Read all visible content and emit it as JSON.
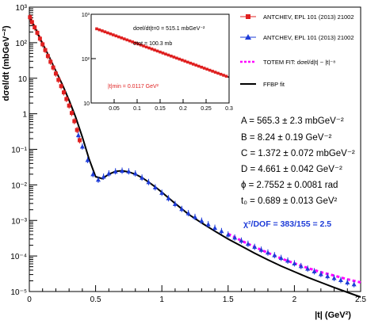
{
  "chart_data": {
    "type": "scatter",
    "title": "",
    "xlabel": "|t| (GeV²)",
    "ylabel": "dσel/dt (mbGeV⁻²)",
    "xlim": [
      0,
      2.5
    ],
    "ylim": [
      1e-05,
      1000
    ],
    "log_y": true,
    "x_ticks": [
      "0",
      "0.5",
      "1",
      "1.5",
      "2",
      "2.5"
    ],
    "y_ticks": [
      "10⁻⁵",
      "10⁻⁴",
      "10⁻³",
      "10⁻²",
      "10⁻¹",
      "1",
      "10",
      "10²",
      "10³"
    ],
    "series": [
      {
        "name": "ANTCHEV, EPL 101 (2013) 21002",
        "color": "#e02020",
        "marker": "square",
        "x": [
          0.005,
          0.02,
          0.04,
          0.06,
          0.08,
          0.1,
          0.12,
          0.14,
          0.16,
          0.18,
          0.2,
          0.22,
          0.24,
          0.26,
          0.28,
          0.3,
          0.32,
          0.34,
          0.36,
          0.38
        ],
        "y": [
          520,
          380,
          270,
          190,
          130,
          90,
          62,
          42,
          29,
          20,
          13.5,
          9.0,
          6.0,
          4.0,
          2.6,
          1.7,
          1.05,
          0.62,
          0.35,
          0.18
        ]
      },
      {
        "name": "ANTCHEV, EPL 101 (2013) 21002",
        "color": "#1e3cd8",
        "marker": "triangle",
        "x": [
          0.37,
          0.4,
          0.44,
          0.48,
          0.52,
          0.56,
          0.6,
          0.65,
          0.7,
          0.75,
          0.8,
          0.85,
          0.9,
          0.95,
          1.0,
          1.05,
          1.1,
          1.15,
          1.2,
          1.25,
          1.3,
          1.35,
          1.4,
          1.45,
          1.5,
          1.55,
          1.6,
          1.65,
          1.7,
          1.75,
          1.8,
          1.85,
          1.9,
          1.95,
          2.0,
          2.05,
          2.1,
          2.15,
          2.2,
          2.25,
          2.3,
          2.35,
          2.4,
          2.45
        ],
        "y": [
          0.25,
          0.12,
          0.05,
          0.02,
          0.014,
          0.017,
          0.021,
          0.024,
          0.025,
          0.024,
          0.021,
          0.016,
          0.012,
          0.0085,
          0.006,
          0.0042,
          0.0029,
          0.0021,
          0.0016,
          0.00125,
          0.00098,
          0.00078,
          0.00062,
          0.0005,
          0.0004,
          0.00033,
          0.00027,
          0.00022,
          0.00018,
          0.00015,
          0.000125,
          0.000105,
          8.8e-05,
          7.4e-05,
          6.2e-05,
          5.2e-05,
          4.4e-05,
          3.7e-05,
          3.1e-05,
          2.7e-05,
          2.4e-05,
          2.1e-05,
          1.8e-05,
          1.6e-05
        ]
      },
      {
        "name": "TOTEM FIT: dσel/d|t| ~ |t|⁻⁸",
        "color": "#ff00ff",
        "style": "dashed",
        "x": [
          1.5,
          1.6,
          1.7,
          1.8,
          1.9,
          2.0,
          2.1,
          2.2,
          2.3,
          2.4,
          2.5
        ],
        "y": [
          0.00042,
          0.00027,
          0.00018,
          0.000122,
          8.5e-05,
          6.2e-05,
          4.6e-05,
          3.5e-05,
          2.8e-05,
          2.2e-05,
          1.8e-05
        ]
      },
      {
        "name": "FFBP fit",
        "color": "#000000",
        "style": "solid",
        "x": [
          0,
          0.05,
          0.1,
          0.15,
          0.2,
          0.25,
          0.3,
          0.35,
          0.4,
          0.45,
          0.5,
          0.55,
          0.6,
          0.65,
          0.7,
          0.75,
          0.8,
          0.85,
          0.9,
          0.95,
          1.0,
          1.1,
          1.2,
          1.3,
          1.4,
          1.5,
          1.6,
          1.7,
          1.8,
          1.9,
          2.0,
          2.1,
          2.2,
          2.3,
          2.4,
          2.5
        ],
        "y": [
          560,
          230,
          95,
          40,
          16,
          6.5,
          2.4,
          0.8,
          0.22,
          0.055,
          0.017,
          0.015,
          0.02,
          0.024,
          0.025,
          0.023,
          0.02,
          0.016,
          0.012,
          0.0088,
          0.0062,
          0.003,
          0.0015,
          0.00085,
          0.0005,
          0.0003,
          0.00019,
          0.00012,
          7.8e-05,
          5.2e-05,
          3.6e-05,
          2.5e-05,
          1.8e-05,
          1.3e-05,
          9.5e-06,
          7e-06
        ]
      }
    ],
    "parameters": [
      "A = 565.3 ± 2.3  mbGeV⁻²",
      "B = 8.24 ± 0.19 GeV⁻²",
      "C = 1.372 ± 0.072 mbGeV⁻²",
      "D = 4.661 ± 0.042 GeV⁻²",
      "ϕ = 2.7552 ± 0.0081 rad",
      "t₀ = 0.689 ± 0.013 GeV²"
    ],
    "chi2": "χ²/DOF = 383/155 = 2.5",
    "inset": {
      "xlim": [
        0,
        0.3
      ],
      "ylim": [
        10,
        1000
      ],
      "x_ticks": [
        "0.05",
        "0.1",
        "0.15",
        "0.2",
        "0.25",
        "0.3"
      ],
      "y_ticks": [
        "10",
        "10²",
        "10³"
      ],
      "label1": "dσel/dt|t=0 = 515.1 mbGeV⁻²",
      "label2": "σtot = 100.3 mb",
      "label3": "|t|min = 0.0117 GeV²",
      "fit_x": [
        0.012,
        0.3
      ],
      "fit_y": [
        470,
        38
      ]
    },
    "legend": [
      "ANTCHEV, EPL 101 (2013) 21002",
      "ANTCHEV, EPL 101 (2013) 21002",
      "TOTEM FIT: dσel/d|t| ~ |t|⁻⁸",
      "FFBP fit"
    ]
  }
}
